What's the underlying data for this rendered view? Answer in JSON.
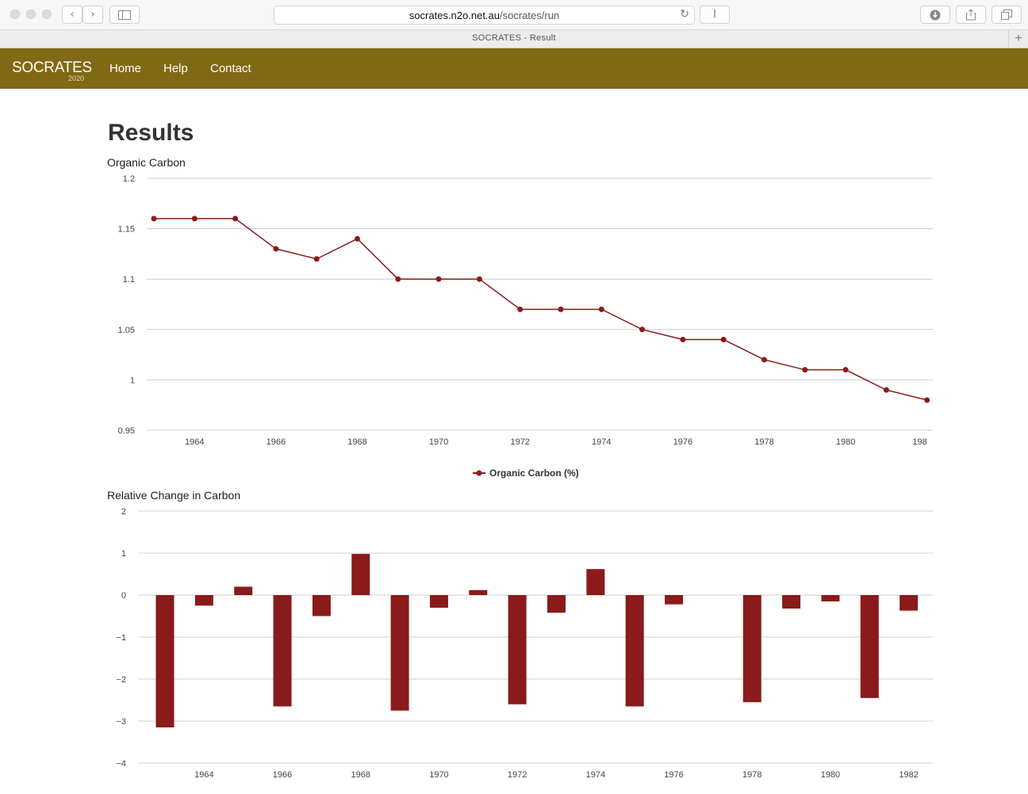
{
  "browser": {
    "url_domain": "socrates.n2o.net.au",
    "url_path": "/socrates/run",
    "tab_title": "SOCRATES - Result"
  },
  "site": {
    "brand": "SOCRATES",
    "brand_year": "2020",
    "nav": [
      "Home",
      "Help",
      "Contact"
    ]
  },
  "page": {
    "title": "Results"
  },
  "colors": {
    "navbar": "#806914",
    "series": "#8b1a1a"
  },
  "chart_data": [
    {
      "type": "line",
      "title": "Organic Carbon",
      "x": [
        1963,
        1964,
        1965,
        1966,
        1967,
        1968,
        1969,
        1970,
        1971,
        1972,
        1973,
        1974,
        1975,
        1976,
        1977,
        1978,
        1979,
        1980,
        1981,
        1982
      ],
      "series": [
        {
          "name": "Organic Carbon (%)",
          "values": [
            1.16,
            1.16,
            1.16,
            1.13,
            1.12,
            1.14,
            1.1,
            1.1,
            1.1,
            1.07,
            1.07,
            1.07,
            1.05,
            1.04,
            1.04,
            1.02,
            1.01,
            1.01,
            0.99,
            0.98
          ]
        }
      ],
      "ylim": [
        0.95,
        1.2
      ],
      "yticks": [
        "0.95",
        "1",
        "1.05",
        "1.1",
        "1.15",
        "1.2"
      ],
      "xticks": [
        "1964",
        "1966",
        "1968",
        "1970",
        "1972",
        "1974",
        "1976",
        "1978",
        "1980",
        "198"
      ],
      "grid": true,
      "legend": "bottom"
    },
    {
      "type": "bar",
      "title": "Relative Change in Carbon",
      "x": [
        1963,
        1964,
        1965,
        1966,
        1967,
        1968,
        1969,
        1970,
        1971,
        1972,
        1973,
        1974,
        1975,
        1976,
        1977,
        1978,
        1979,
        1980,
        1981,
        1982
      ],
      "values": [
        -3.15,
        -0.25,
        0.2,
        -2.65,
        -0.5,
        0.98,
        -2.75,
        -0.3,
        0.12,
        -2.6,
        -0.42,
        0.62,
        -2.65,
        -0.22,
        0,
        -2.55,
        -0.32,
        -0.15,
        -2.45,
        -0.37
      ],
      "ylim": [
        -4,
        2
      ],
      "yticks": [
        "−4",
        "−3",
        "−2",
        "−1",
        "0",
        "1",
        "2"
      ],
      "xticks": [
        "1964",
        "1966",
        "1968",
        "1970",
        "1972",
        "1974",
        "1976",
        "1978",
        "1980",
        "1982"
      ],
      "grid": true
    }
  ]
}
